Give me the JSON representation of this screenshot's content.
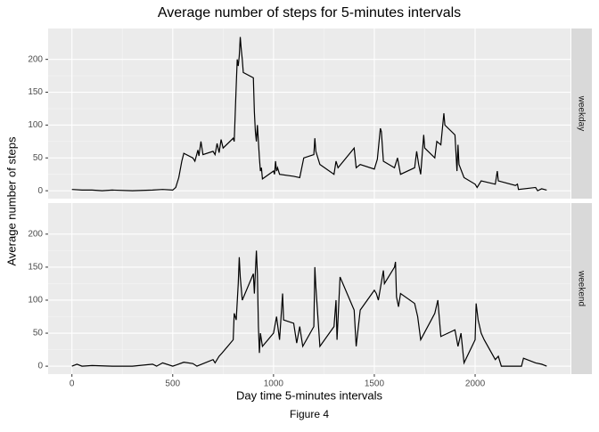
{
  "title": "Average number of steps for 5-minutes intervals",
  "x_label": "Day time 5-minutes intervals",
  "y_label": "Average number of steps",
  "caption": "Figure 4",
  "chart_data": [
    {
      "type": "line",
      "facet": "weekday",
      "color": "#000000",
      "grid": true,
      "x": [
        0,
        50,
        100,
        150,
        200,
        300,
        400,
        450,
        500,
        515,
        530,
        545,
        555,
        600,
        610,
        625,
        630,
        640,
        650,
        700,
        710,
        720,
        730,
        740,
        750,
        800,
        805,
        815,
        820,
        825,
        830,
        835,
        840,
        845,
        850,
        900,
        905,
        910,
        915,
        920,
        930,
        935,
        940,
        945,
        1000,
        1005,
        1010,
        1015,
        1020,
        1030,
        1100,
        1130,
        1140,
        1150,
        1200,
        1205,
        1210,
        1230,
        1300,
        1310,
        1320,
        1400,
        1410,
        1430,
        1500,
        1515,
        1530,
        1535,
        1545,
        1600,
        1615,
        1630,
        1700,
        1710,
        1720,
        1730,
        1745,
        1750,
        1800,
        1810,
        1830,
        1845,
        1850,
        1900,
        1910,
        1915,
        1920,
        1945,
        2000,
        2010,
        2030,
        2100,
        2110,
        2115,
        2200,
        2210,
        2215,
        2300,
        2310,
        2330,
        2355
      ],
      "values": [
        2,
        1,
        1,
        0,
        1,
        0,
        1,
        2,
        1,
        5,
        20,
        45,
        57,
        50,
        45,
        62,
        53,
        75,
        55,
        60,
        55,
        72,
        58,
        78,
        65,
        80,
        75,
        160,
        200,
        190,
        205,
        234,
        215,
        200,
        180,
        172,
        120,
        90,
        75,
        100,
        50,
        30,
        35,
        18,
        30,
        25,
        45,
        30,
        35,
        25,
        22,
        20,
        35,
        50,
        55,
        80,
        60,
        40,
        25,
        45,
        35,
        65,
        35,
        40,
        33,
        48,
        95,
        90,
        45,
        35,
        50,
        25,
        35,
        60,
        40,
        25,
        85,
        65,
        50,
        75,
        70,
        118,
        100,
        85,
        30,
        70,
        40,
        20,
        10,
        5,
        15,
        10,
        30,
        15,
        8,
        10,
        2,
        5,
        0,
        3,
        1
      ],
      "xlim": [
        -118,
        2473
      ],
      "ylim": [
        -12,
        247
      ],
      "xticks": [
        0,
        500,
        1000,
        1500,
        2000
      ],
      "yticks": [
        0,
        50,
        100,
        150,
        200
      ]
    },
    {
      "type": "line",
      "facet": "weekend",
      "color": "#000000",
      "grid": true,
      "x": [
        0,
        25,
        50,
        100,
        200,
        300,
        400,
        420,
        450,
        500,
        520,
        555,
        600,
        620,
        700,
        710,
        730,
        745,
        800,
        805,
        815,
        825,
        830,
        835,
        845,
        900,
        905,
        915,
        920,
        925,
        930,
        935,
        945,
        1000,
        1015,
        1030,
        1045,
        1050,
        1100,
        1115,
        1130,
        1145,
        1200,
        1205,
        1210,
        1230,
        1300,
        1310,
        1315,
        1330,
        1400,
        1410,
        1430,
        1500,
        1510,
        1520,
        1545,
        1550,
        1600,
        1605,
        1610,
        1620,
        1630,
        1700,
        1715,
        1730,
        1800,
        1815,
        1830,
        1900,
        1915,
        1930,
        1945,
        2000,
        2005,
        2015,
        2030,
        2045,
        2100,
        2115,
        2130,
        2200,
        2230,
        2240,
        2300,
        2330,
        2355
      ],
      "values": [
        0,
        3,
        0,
        1,
        0,
        0,
        3,
        0,
        5,
        0,
        2,
        6,
        4,
        0,
        10,
        5,
        15,
        20,
        40,
        80,
        70,
        125,
        165,
        135,
        100,
        140,
        110,
        175,
        140,
        60,
        20,
        50,
        30,
        50,
        75,
        40,
        110,
        70,
        65,
        35,
        60,
        30,
        60,
        150,
        120,
        30,
        60,
        100,
        40,
        135,
        85,
        30,
        85,
        115,
        110,
        100,
        145,
        125,
        150,
        158,
        105,
        90,
        110,
        95,
        75,
        40,
        80,
        100,
        45,
        55,
        30,
        50,
        5,
        40,
        95,
        70,
        50,
        40,
        10,
        15,
        0,
        0,
        0,
        12,
        5,
        3,
        0
      ],
      "xlim": [
        -118,
        2473
      ],
      "ylim": [
        -12,
        247
      ],
      "xticks": [
        0,
        500,
        1000,
        1500,
        2000
      ],
      "yticks": [
        0,
        50,
        100,
        150,
        200
      ]
    }
  ]
}
